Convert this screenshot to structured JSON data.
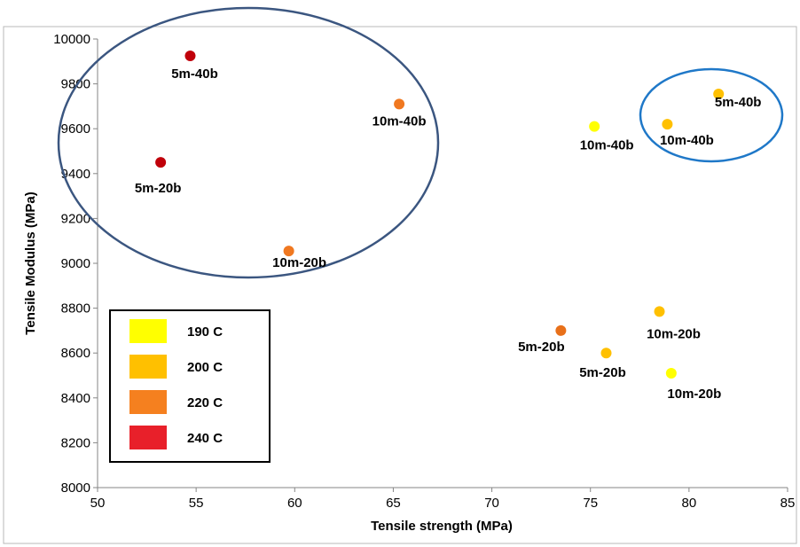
{
  "chart_data": {
    "type": "scatter",
    "title": "",
    "xlabel": "Tensile strength (MPa)",
    "ylabel": "Tensile Modulus (MPa)",
    "xlim": [
      50,
      85
    ],
    "ylim": [
      8000,
      10000
    ],
    "xticks": [
      50,
      55,
      60,
      65,
      70,
      75,
      80,
      85
    ],
    "yticks": [
      8000,
      8200,
      8400,
      8600,
      8800,
      9000,
      9200,
      9400,
      9600,
      9800,
      10000
    ],
    "grid": false,
    "legend": {
      "placement": "bottom-left",
      "entries": [
        {
          "label": "190 C",
          "color": "#ffff00"
        },
        {
          "label": "200 C",
          "color": "#ffc000"
        },
        {
          "label": "220 C",
          "color": "#f5801f"
        },
        {
          "label": "240 C",
          "color": "#e8202a"
        }
      ]
    },
    "points": [
      {
        "x": 54.7,
        "y": 9925,
        "label": "5m-40b",
        "temp": "240 C",
        "color": "#c0000a"
      },
      {
        "x": 53.2,
        "y": 9450,
        "label": "5m-20b",
        "temp": "240 C",
        "color": "#c0000a"
      },
      {
        "x": 65.3,
        "y": 9710,
        "label": "10m-40b",
        "temp": "220 C",
        "color": "#f07820"
      },
      {
        "x": 59.7,
        "y": 9055,
        "label": "10m-20b",
        "temp": "220 C",
        "color": "#f07820"
      },
      {
        "x": 73.5,
        "y": 8700,
        "label": "5m-20b",
        "temp": "220 C",
        "color": "#e8701a"
      },
      {
        "x": 75.2,
        "y": 9610,
        "label": "10m-40b",
        "temp": "190 C",
        "color": "#ffff00"
      },
      {
        "x": 78.9,
        "y": 9620,
        "label": "10m-40b",
        "temp": "200 C",
        "color": "#ffc000"
      },
      {
        "x": 81.5,
        "y": 9755,
        "label": "5m-40b",
        "temp": "200 C",
        "color": "#ffc000"
      },
      {
        "x": 78.5,
        "y": 8785,
        "label": "10m-20b",
        "temp": "200 C",
        "color": "#ffc000"
      },
      {
        "x": 75.8,
        "y": 8600,
        "label": "5m-20b",
        "temp": "200 C",
        "color": "#ffc000"
      },
      {
        "x": 79.1,
        "y": 8510,
        "label": "10m-20b",
        "temp": "190 C",
        "color": "#ffff00"
      }
    ],
    "annotations": [
      {
        "type": "ellipse",
        "color": "#3b5680",
        "encloses": [
          "5m-40b 240 C",
          "5m-20b 240 C",
          "10m-40b 220 C",
          "10m-20b 220 C"
        ]
      },
      {
        "type": "ellipse",
        "color": "#1f78c8",
        "encloses": [
          "10m-40b 200 C",
          "5m-40b 200 C"
        ]
      }
    ]
  }
}
